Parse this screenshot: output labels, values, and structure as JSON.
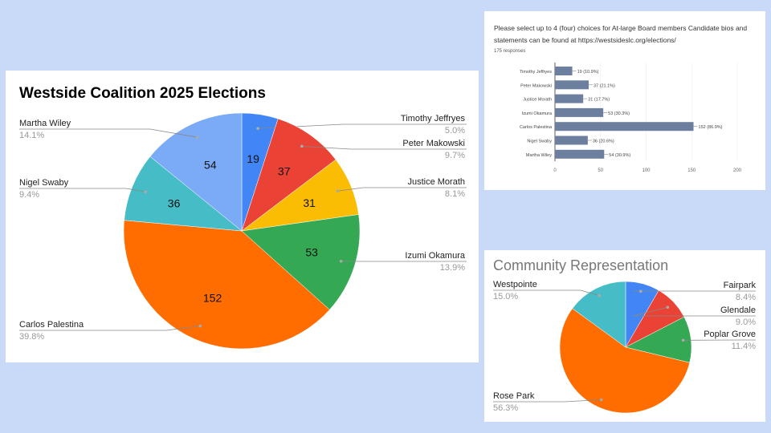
{
  "chart_data": [
    {
      "type": "pie",
      "title": "Westside Coalition 2025 Elections",
      "categories": [
        "Timothy Jeffryes",
        "Peter Makowski",
        "Justice Morath",
        "Izumi Okamura",
        "Carlos Palestina",
        "Nigel Swaby",
        "Martha Wiley"
      ],
      "values": [
        19,
        37,
        31,
        53,
        152,
        36,
        54
      ],
      "percent_labels": [
        "5.0%",
        "9.7%",
        "8.1%",
        "13.9%",
        "39.8%",
        "9.4%",
        "14.1%"
      ],
      "colors": [
        "#4285f4",
        "#ea4335",
        "#fbbc04",
        "#34a853",
        "#ff6d01",
        "#46bdc6",
        "#7baaf7"
      ]
    },
    {
      "type": "bar",
      "orientation": "horizontal",
      "title": "Please select up to 4 (four) choices for At-large Board members   Candidate bios and statements can be found at https://westsideslc.org/elections/",
      "subtitle": "175 responses",
      "categories": [
        "Timothy Jeffryes",
        "Peter Makowski",
        "Justice Morath",
        "Izumi Okamura",
        "Carlos Palestina",
        "Nigel Swaby",
        "Martha Wiley"
      ],
      "values": [
        19,
        37,
        31,
        53,
        152,
        36,
        54
      ],
      "data_labels": [
        "19 (10.9%)",
        "37 (21.1%)",
        "31 (17.7%)",
        "53 (30.3%)",
        "152 (86.9%)",
        "36 (20.6%)",
        "54 (30.9%)"
      ],
      "xticks": [
        "0",
        "50",
        "100",
        "150",
        "200"
      ],
      "xlim": [
        0,
        200
      ],
      "color": "#6c7f9e",
      "grid": true
    },
    {
      "type": "pie",
      "title": "Community Representation",
      "categories": [
        "Fairpark",
        "Glendale",
        "Poplar Grove",
        "Rose Park",
        "Westpointe"
      ],
      "values": [
        8.4,
        9.0,
        11.4,
        56.3,
        15.0
      ],
      "percent_labels": [
        "8.4%",
        "9.0%",
        "11.4%",
        "56.3%",
        "15.0%"
      ],
      "colors": [
        "#4285f4",
        "#ea4335",
        "#34a853",
        "#ff6d01",
        "#46bdc6"
      ]
    }
  ]
}
